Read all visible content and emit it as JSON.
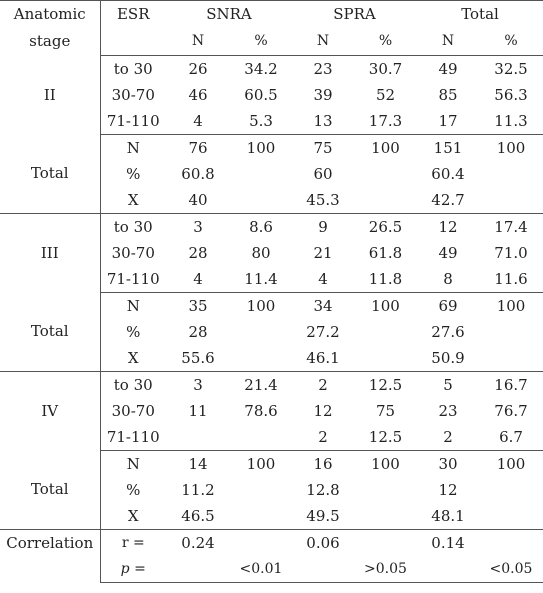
{
  "header": {
    "anatomic_stage_line1": "Anatomic",
    "anatomic_stage_line2": "stage",
    "esr": "ESR",
    "snra": "SNRA",
    "spra": "SPRA",
    "total": "Total",
    "n": "N",
    "pct": "%"
  },
  "sections": [
    {
      "stage": "II",
      "rows": [
        [
          "to 30",
          "26",
          "34.2",
          "23",
          "30.7",
          "49",
          "32.5"
        ],
        [
          "30-70",
          "46",
          "60.5",
          "39",
          "52",
          "85",
          "56.3"
        ],
        [
          "71-110",
          "4",
          "5.3",
          "13",
          "17.3",
          "17",
          "11.3"
        ]
      ],
      "total_label": "Total",
      "total_rows": [
        [
          "N",
          "76",
          "100",
          "75",
          "100",
          "151",
          "100"
        ],
        [
          "%",
          "60.8",
          "",
          "60",
          "",
          "60.4",
          ""
        ],
        [
          "X",
          "40",
          "",
          "45.3",
          "",
          "42.7",
          ""
        ]
      ]
    },
    {
      "stage": "III",
      "rows": [
        [
          "to 30",
          "3",
          "8.6",
          "9",
          "26.5",
          "12",
          "17.4"
        ],
        [
          "30-70",
          "28",
          "80",
          "21",
          "61.8",
          "49",
          "71.0"
        ],
        [
          "71-110",
          "4",
          "11.4",
          "4",
          "11.8",
          "8",
          "11.6"
        ]
      ],
      "total_label": "Total",
      "total_rows": [
        [
          "N",
          "35",
          "100",
          "34",
          "100",
          "69",
          "100"
        ],
        [
          "%",
          "28",
          "",
          "27.2",
          "",
          "27.6",
          ""
        ],
        [
          "X",
          "55.6",
          "",
          "46.1",
          "",
          "50.9",
          ""
        ]
      ]
    },
    {
      "stage": "IV",
      "rows": [
        [
          "to 30",
          "3",
          "21.4",
          "2",
          "12.5",
          "5",
          "16.7"
        ],
        [
          "30-70",
          "11",
          "78.6",
          "12",
          "75",
          "23",
          "76.7"
        ],
        [
          "71-110",
          "",
          "",
          "2",
          "12.5",
          "2",
          "6.7"
        ]
      ],
      "total_label": "Total",
      "total_rows": [
        [
          "N",
          "14",
          "100",
          "16",
          "100",
          "30",
          "100"
        ],
        [
          "%",
          "11.2",
          "",
          "12.8",
          "",
          "12",
          ""
        ],
        [
          "X",
          "46.5",
          "",
          "49.5",
          "",
          "48.1",
          ""
        ]
      ]
    }
  ],
  "correlation": {
    "label": "Correlation",
    "r_label": "r =",
    "r_values": [
      "0.24",
      "",
      "0.06",
      "",
      "0.14",
      ""
    ],
    "p_label": "p =",
    "p_values": [
      "",
      "<0.01",
      "",
      ">0.05",
      "",
      "<0.05"
    ]
  }
}
